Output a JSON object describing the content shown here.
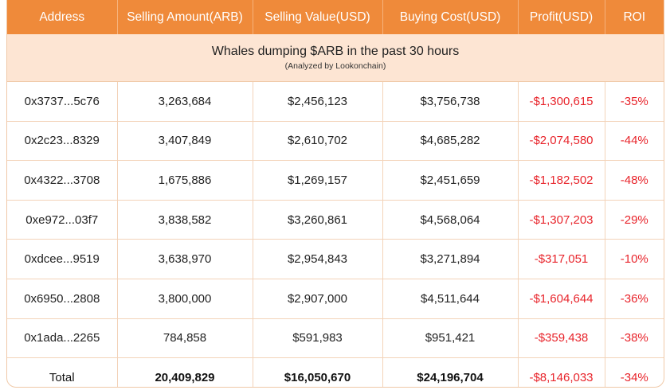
{
  "columns": [
    "Address",
    "Selling Amount(ARB)",
    "Selling Value(USD)",
    "Buying Cost(USD)",
    "Profit(USD)",
    "ROI"
  ],
  "banner": {
    "title": "Whales dumping $ARB in the past 30 hours",
    "subtitle": "(Analyzed by Lookonchain)"
  },
  "rows": [
    [
      "0x3737...5c76",
      "3,263,684",
      "$2,456,123",
      "$3,756,738",
      "-$1,300,615",
      "-35%"
    ],
    [
      "0x2c23...8329",
      "3,407,849",
      "$2,610,702",
      "$4,685,282",
      "-$2,074,580",
      "-44%"
    ],
    [
      "0x4322...3708",
      "1,675,886",
      "$1,269,157",
      "$2,451,659",
      "-$1,182,502",
      "-48%"
    ],
    [
      "0xe972...03f7",
      "3,838,582",
      "$3,260,861",
      "$4,568,064",
      "-$1,307,203",
      "-29%"
    ],
    [
      "0xdcee...9519",
      "3,638,970",
      "$2,954,843",
      "$3,271,894",
      "-$317,051",
      "-10%"
    ],
    [
      "0x6950...2808",
      "3,800,000",
      "$2,907,000",
      "$4,511,644",
      "-$1,604,644",
      "-36%"
    ],
    [
      "0x1ada...2265",
      "784,858",
      "$591,983",
      "$951,421",
      "-$359,438",
      "-38%"
    ]
  ],
  "total": [
    "Total",
    "20,409,829",
    "$16,050,670",
    "$24,196,704",
    "-$8,146,033",
    "-34%"
  ],
  "colors": {
    "header": "#ef8a3a",
    "banner": "#fde5d3",
    "negative": "#e8242b",
    "border": "#f3d3b9"
  }
}
